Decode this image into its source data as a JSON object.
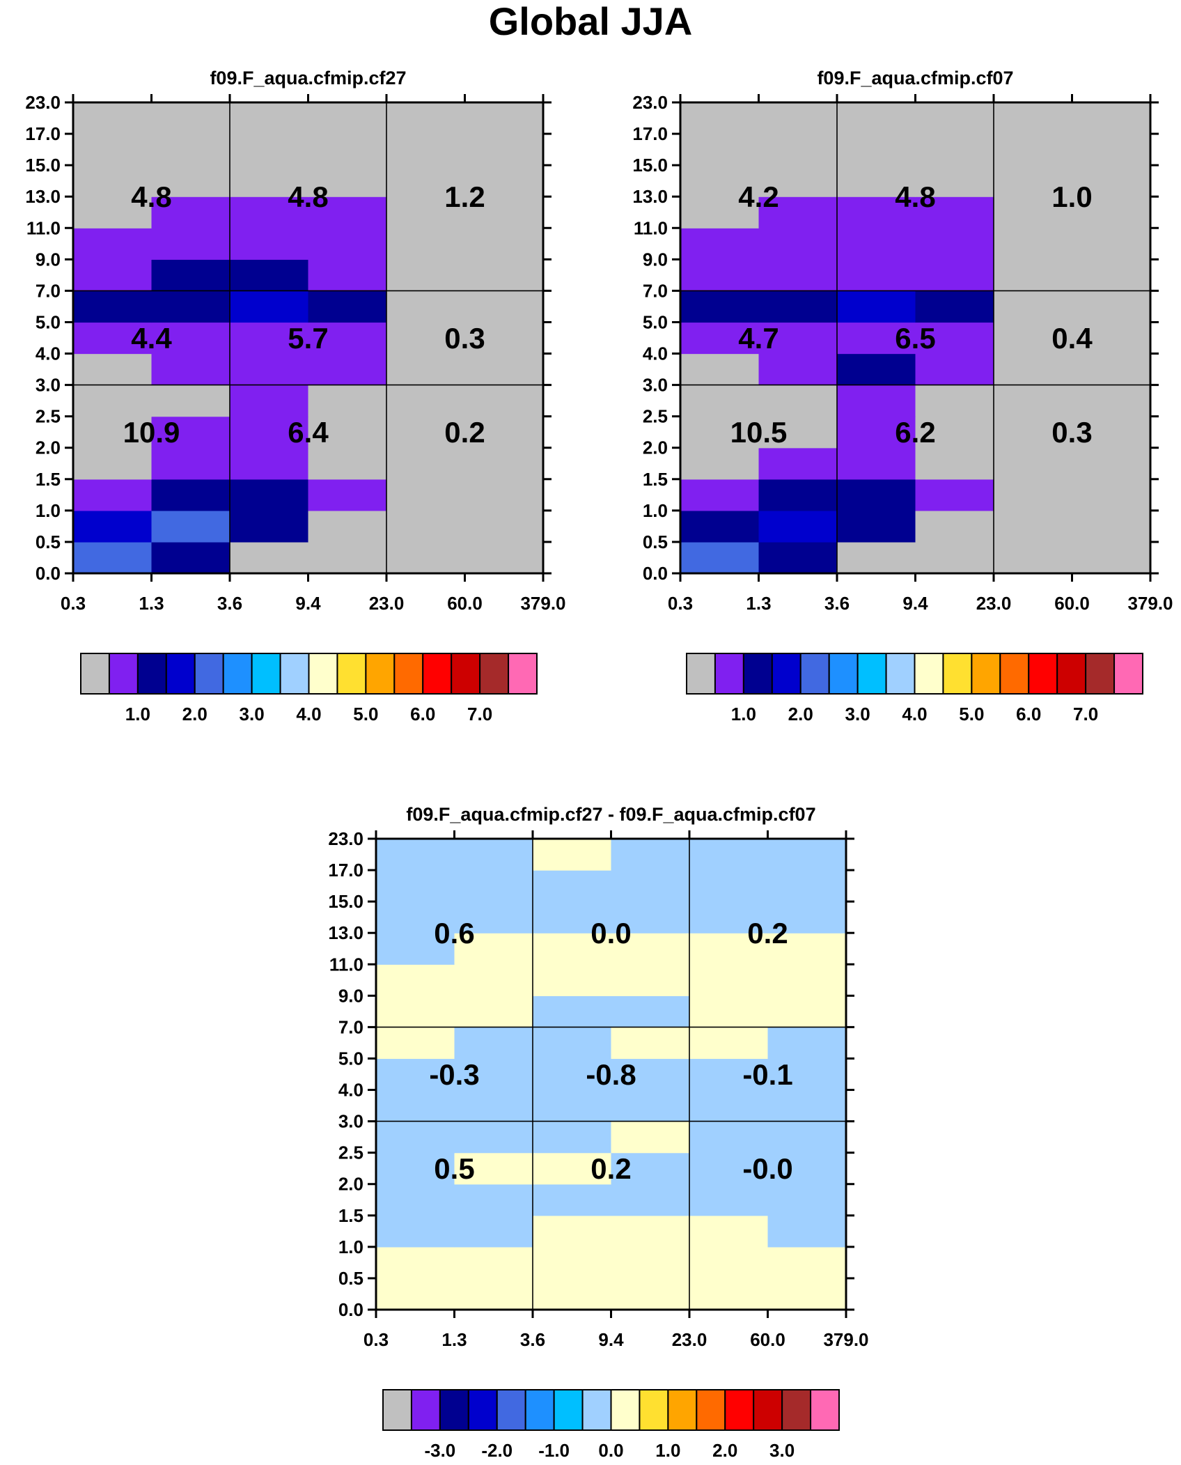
{
  "figure": {
    "title": "Global JJA"
  },
  "colors": {
    "palette": [
      "#c0c0c0",
      "#8020f0",
      "#000090",
      "#0000cd",
      "#4169e1",
      "#1e90ff",
      "#00bfff",
      "#a0d0ff",
      "#ffffcc",
      "#ffe030",
      "#ffa500",
      "#ff6a00",
      "#ff0000",
      "#cd0000",
      "#a52a2a",
      "#ff69b4"
    ]
  },
  "chart_data": [
    {
      "type": "heatmap",
      "title": "f09.F_aqua.cfmip.cf27",
      "x_tick_labels": [
        "0.3",
        "1.3",
        "3.6",
        "9.4",
        "23.0",
        "60.0",
        "379.0"
      ],
      "y_tick_labels": [
        "0.0",
        "0.5",
        "1.0",
        "1.5",
        "2.0",
        "2.5",
        "3.0",
        "4.0",
        "5.0",
        "7.0",
        "9.0",
        "11.0",
        "13.0",
        "15.0",
        "17.0",
        "23.0"
      ],
      "grid_rows_bottom_to_top": [
        [
          4,
          2,
          0,
          0,
          0,
          0
        ],
        [
          3,
          4,
          2,
          0,
          0,
          0
        ],
        [
          1,
          2,
          2,
          1,
          0,
          0
        ],
        [
          0,
          1,
          1,
          0,
          0,
          0
        ],
        [
          0,
          1,
          1,
          0,
          0,
          0
        ],
        [
          0,
          0,
          1,
          0,
          0,
          0
        ],
        [
          0,
          1,
          1,
          1,
          0,
          0
        ],
        [
          1,
          1,
          1,
          1,
          0,
          0
        ],
        [
          2,
          2,
          3,
          2,
          0,
          0
        ],
        [
          1,
          2,
          2,
          1,
          0,
          0
        ],
        [
          1,
          1,
          1,
          1,
          0,
          0
        ],
        [
          0,
          1,
          1,
          1,
          0,
          0
        ],
        [
          0,
          0,
          0,
          0,
          0,
          0
        ],
        [
          0,
          0,
          0,
          0,
          0,
          0
        ],
        [
          0,
          0,
          0,
          0,
          0,
          0
        ]
      ],
      "region_labels": [
        [
          "10.9",
          "6.4",
          "0.2"
        ],
        [
          "4.4",
          "5.7",
          "0.3"
        ],
        [
          "4.8",
          "4.8",
          "1.2"
        ]
      ],
      "colorbar": {
        "colors": [
          "#c0c0c0",
          "#8020f0",
          "#000090",
          "#0000cd",
          "#4169e1",
          "#1e90ff",
          "#00bfff",
          "#a0d0ff",
          "#ffffcc",
          "#ffe030",
          "#ffa500",
          "#ff6a00",
          "#ff0000",
          "#cd0000",
          "#a52a2a",
          "#ff69b4"
        ],
        "labels": [
          "1.0",
          "2.0",
          "3.0",
          "4.0",
          "5.0",
          "6.0",
          "7.0"
        ],
        "label_boundaries": [
          2,
          4,
          6,
          8,
          10,
          12,
          14
        ]
      }
    },
    {
      "type": "heatmap",
      "title": "f09.F_aqua.cfmip.cf07",
      "x_tick_labels": [
        "0.3",
        "1.3",
        "3.6",
        "9.4",
        "23.0",
        "60.0",
        "379.0"
      ],
      "y_tick_labels": [
        "0.0",
        "0.5",
        "1.0",
        "1.5",
        "2.0",
        "2.5",
        "3.0",
        "4.0",
        "5.0",
        "7.0",
        "9.0",
        "11.0",
        "13.0",
        "15.0",
        "17.0",
        "23.0"
      ],
      "grid_rows_bottom_to_top": [
        [
          4,
          2,
          0,
          0,
          0,
          0
        ],
        [
          2,
          3,
          2,
          0,
          0,
          0
        ],
        [
          1,
          2,
          2,
          1,
          0,
          0
        ],
        [
          0,
          1,
          1,
          0,
          0,
          0
        ],
        [
          0,
          0,
          1,
          0,
          0,
          0
        ],
        [
          0,
          0,
          1,
          0,
          0,
          0
        ],
        [
          0,
          1,
          2,
          1,
          0,
          0
        ],
        [
          1,
          1,
          1,
          1,
          0,
          0
        ],
        [
          2,
          2,
          3,
          2,
          0,
          0
        ],
        [
          1,
          1,
          1,
          1,
          0,
          0
        ],
        [
          1,
          1,
          1,
          1,
          0,
          0
        ],
        [
          0,
          1,
          1,
          1,
          0,
          0
        ],
        [
          0,
          0,
          0,
          0,
          0,
          0
        ],
        [
          0,
          0,
          0,
          0,
          0,
          0
        ],
        [
          0,
          0,
          0,
          0,
          0,
          0
        ]
      ],
      "region_labels": [
        [
          "10.5",
          "6.2",
          "0.3"
        ],
        [
          "4.7",
          "6.5",
          "0.4"
        ],
        [
          "4.2",
          "4.8",
          "1.0"
        ]
      ],
      "colorbar": {
        "colors": [
          "#c0c0c0",
          "#8020f0",
          "#000090",
          "#0000cd",
          "#4169e1",
          "#1e90ff",
          "#00bfff",
          "#a0d0ff",
          "#ffffcc",
          "#ffe030",
          "#ffa500",
          "#ff6a00",
          "#ff0000",
          "#cd0000",
          "#a52a2a",
          "#ff69b4"
        ],
        "labels": [
          "1.0",
          "2.0",
          "3.0",
          "4.0",
          "5.0",
          "6.0",
          "7.0"
        ],
        "label_boundaries": [
          2,
          4,
          6,
          8,
          10,
          12,
          14
        ]
      }
    },
    {
      "type": "heatmap",
      "title": "f09.F_aqua.cfmip.cf27 - f09.F_aqua.cfmip.cf07",
      "x_tick_labels": [
        "0.3",
        "1.3",
        "3.6",
        "9.4",
        "23.0",
        "60.0",
        "379.0"
      ],
      "y_tick_labels": [
        "0.0",
        "0.5",
        "1.0",
        "1.5",
        "2.0",
        "2.5",
        "3.0",
        "4.0",
        "5.0",
        "7.0",
        "9.0",
        "11.0",
        "13.0",
        "15.0",
        "17.0",
        "23.0"
      ],
      "grid_rows_bottom_to_top": [
        [
          8,
          8,
          8,
          8,
          8,
          8
        ],
        [
          8,
          8,
          8,
          8,
          8,
          8
        ],
        [
          7,
          7,
          8,
          8,
          8,
          7
        ],
        [
          7,
          7,
          7,
          7,
          7,
          7
        ],
        [
          7,
          8,
          8,
          7,
          7,
          7
        ],
        [
          7,
          7,
          7,
          8,
          7,
          7
        ],
        [
          7,
          7,
          7,
          7,
          7,
          7
        ],
        [
          7,
          7,
          7,
          7,
          7,
          7
        ],
        [
          8,
          7,
          7,
          8,
          8,
          7
        ],
        [
          8,
          8,
          7,
          7,
          8,
          8
        ],
        [
          8,
          8,
          8,
          8,
          8,
          8
        ],
        [
          7,
          8,
          8,
          8,
          8,
          8
        ],
        [
          7,
          7,
          7,
          7,
          7,
          7
        ],
        [
          7,
          7,
          7,
          7,
          7,
          7
        ],
        [
          7,
          7,
          8,
          7,
          7,
          7
        ]
      ],
      "region_labels": [
        [
          "0.5",
          "0.2",
          "-0.0"
        ],
        [
          "-0.3",
          "-0.8",
          "-0.1"
        ],
        [
          "0.6",
          "0.0",
          "0.2"
        ]
      ],
      "colorbar": {
        "colors": [
          "#c0c0c0",
          "#8020f0",
          "#000090",
          "#0000cd",
          "#4169e1",
          "#1e90ff",
          "#00bfff",
          "#a0d0ff",
          "#ffffcc",
          "#ffe030",
          "#ffa500",
          "#ff6a00",
          "#ff0000",
          "#cd0000",
          "#a52a2a",
          "#ff69b4"
        ],
        "labels": [
          "-3.0",
          "-2.0",
          "-1.0",
          "0.0",
          "1.0",
          "2.0",
          "3.0"
        ],
        "label_boundaries": [
          2,
          4,
          6,
          8,
          10,
          12,
          14
        ]
      }
    }
  ]
}
